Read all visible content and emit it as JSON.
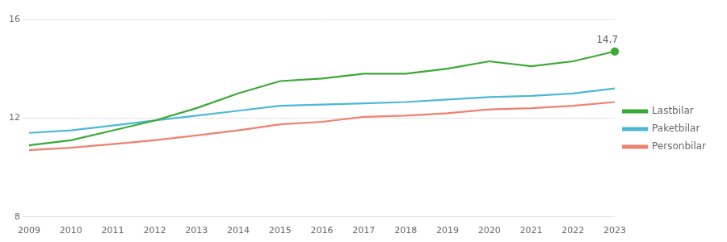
{
  "chart_data": {
    "type": "line",
    "x": [
      2009,
      2010,
      2011,
      2012,
      2013,
      2014,
      2015,
      2016,
      2017,
      2018,
      2019,
      2020,
      2021,
      2022,
      2023
    ],
    "series": [
      {
        "name": "Lastbilar",
        "color": "#3aaa35",
        "marker": "last",
        "values": [
          10.9,
          11.1,
          11.5,
          11.9,
          12.4,
          13.0,
          13.5,
          13.6,
          13.8,
          13.8,
          14.0,
          14.3,
          14.1,
          14.3,
          14.7
        ]
      },
      {
        "name": "Paketbilar",
        "color": "#4db8d4",
        "values": [
          11.4,
          11.5,
          11.7,
          11.9,
          12.1,
          12.3,
          12.5,
          12.55,
          12.6,
          12.65,
          12.75,
          12.85,
          12.9,
          13.0,
          13.2
        ]
      },
      {
        "name": "Personbilar",
        "color": "#f08070",
        "values": [
          10.7,
          10.8,
          10.95,
          11.1,
          11.3,
          11.5,
          11.75,
          11.85,
          12.05,
          12.1,
          12.2,
          12.35,
          12.4,
          12.5,
          12.65
        ]
      }
    ],
    "xlim": [
      2009,
      2023
    ],
    "xticks": [
      2009,
      2010,
      2011,
      2012,
      2013,
      2014,
      2015,
      2016,
      2017,
      2018,
      2019,
      2020,
      2021,
      2022,
      2023
    ],
    "ylim": [
      8,
      16
    ],
    "yticks": [
      8,
      12,
      16
    ],
    "grid": "y",
    "legend": "right",
    "annotations": [
      {
        "text": "14,7",
        "x": 2023,
        "y": 14.7
      }
    ]
  }
}
